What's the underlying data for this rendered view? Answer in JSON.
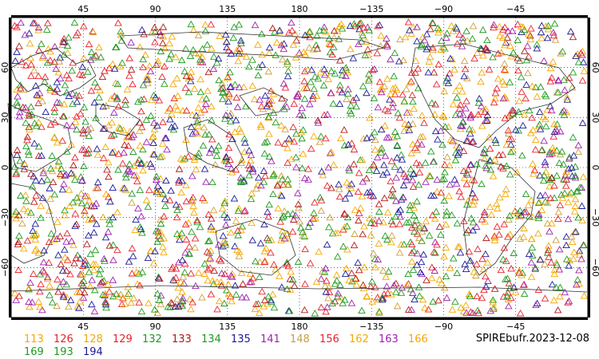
{
  "map": {
    "top_lon_labels": [
      "45",
      "90",
      "135",
      "180",
      "−135",
      "−90",
      "−45"
    ],
    "bottom_lon_labels": [
      "45",
      "90",
      "135",
      "180",
      "−135",
      "−90",
      "−45"
    ],
    "left_lat_labels": [
      "60",
      "30",
      "0",
      "−30",
      "−60"
    ],
    "right_lat_labels": [
      "60",
      "30",
      "0",
      "−30",
      "−60"
    ],
    "lon_values": [
      45,
      90,
      135,
      180,
      -135,
      -90,
      -45
    ],
    "lat_values": [
      60,
      30,
      0,
      -30,
      -60
    ],
    "lon_range": [
      0,
      360
    ],
    "lat_range": [
      -90,
      90
    ],
    "gridlines": true,
    "marker_shape": "open-triangle"
  },
  "legend": {
    "row1": [
      {
        "label": "113",
        "color": "#f5a800"
      },
      {
        "label": "126",
        "color": "#e8222b"
      },
      {
        "label": "128",
        "color": "#f5a800"
      },
      {
        "label": "129",
        "color": "#e8222b"
      },
      {
        "label": "132",
        "color": "#1f9a1f"
      },
      {
        "label": "133",
        "color": "#b01818"
      },
      {
        "label": "134",
        "color": "#1f9a1f"
      },
      {
        "label": "135",
        "color": "#1a1a9a"
      },
      {
        "label": "141",
        "color": "#a020b0"
      },
      {
        "label": "148",
        "color": "#c8a040"
      },
      {
        "label": "156",
        "color": "#e8222b"
      },
      {
        "label": "162",
        "color": "#f5a800"
      },
      {
        "label": "163",
        "color": "#a020b0"
      },
      {
        "label": "166",
        "color": "#f5a800"
      }
    ],
    "row2": [
      {
        "label": "169",
        "color": "#1f9a1f"
      },
      {
        "label": "193",
        "color": "#1f9a1f"
      },
      {
        "label": "194",
        "color": "#1a1a9a"
      }
    ]
  },
  "caption": "SPIREbufr.2023-12-08"
}
